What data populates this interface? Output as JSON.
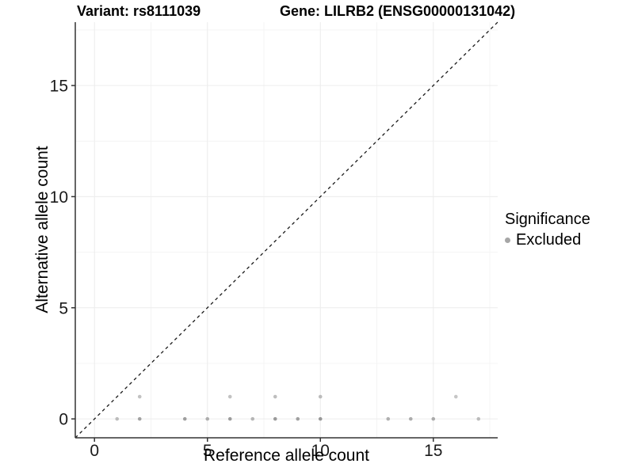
{
  "titles": {
    "variant": "Variant: rs8111039",
    "gene": "Gene: LILRB2 (ENSG00000131042)"
  },
  "legend": {
    "title": "Significance",
    "items": [
      {
        "label": "Excluded",
        "color": "#a6a6a6"
      }
    ]
  },
  "chart_data": {
    "type": "scatter",
    "title_left": "Variant: rs8111039",
    "title_right": "Gene: LILRB2 (ENSG00000131042)",
    "xlabel": "Reference allele count",
    "ylabel": "Alternative allele count",
    "xlim": [
      -0.85,
      17.85
    ],
    "ylim": [
      -0.85,
      17.85
    ],
    "xticks": [
      0,
      5,
      10,
      15
    ],
    "yticks": [
      0,
      5,
      10,
      15
    ],
    "x_minor": [
      2.5,
      7.5,
      12.5,
      17.5
    ],
    "y_minor": [
      2.5,
      7.5,
      12.5,
      17.5
    ],
    "grid": true,
    "legend_position": "right",
    "identity_line": {
      "style": "dashed",
      "x1": -0.85,
      "y1": -0.85,
      "x2": 17.85,
      "y2": 17.85,
      "color": "#1a1a1a"
    },
    "series": [
      {
        "name": "Excluded",
        "points": [
          {
            "x": 1,
            "y": 0,
            "color": "#bcbcbc"
          },
          {
            "x": 2,
            "y": 0,
            "color": "#a2a2a2"
          },
          {
            "x": 4,
            "y": 0,
            "color": "#9e9e9e"
          },
          {
            "x": 5,
            "y": 0,
            "color": "#adadad"
          },
          {
            "x": 6,
            "y": 0,
            "color": "#9c9c9c"
          },
          {
            "x": 7,
            "y": 0,
            "color": "#b5b5b5"
          },
          {
            "x": 8,
            "y": 0,
            "color": "#9a9a9a"
          },
          {
            "x": 9,
            "y": 0,
            "color": "#a0a0a0"
          },
          {
            "x": 10,
            "y": 0,
            "color": "#979797"
          },
          {
            "x": 13,
            "y": 0,
            "color": "#b0b0b0"
          },
          {
            "x": 14,
            "y": 0,
            "color": "#acacac"
          },
          {
            "x": 15,
            "y": 0,
            "color": "#aaaaaa"
          },
          {
            "x": 17,
            "y": 0,
            "color": "#bcbcbc"
          },
          {
            "x": 2,
            "y": 1,
            "color": "#c2c2c2"
          },
          {
            "x": 6,
            "y": 1,
            "color": "#c2c2c2"
          },
          {
            "x": 8,
            "y": 1,
            "color": "#bebebe"
          },
          {
            "x": 10,
            "y": 1,
            "color": "#bbbbbb"
          },
          {
            "x": 16,
            "y": 1,
            "color": "#c6c6c6"
          }
        ]
      }
    ],
    "colors": {
      "grid_major": "#ececec",
      "grid_minor": "#f4f4f4",
      "axis_line": "#333333",
      "tick_text": "#1a1a1a"
    }
  }
}
